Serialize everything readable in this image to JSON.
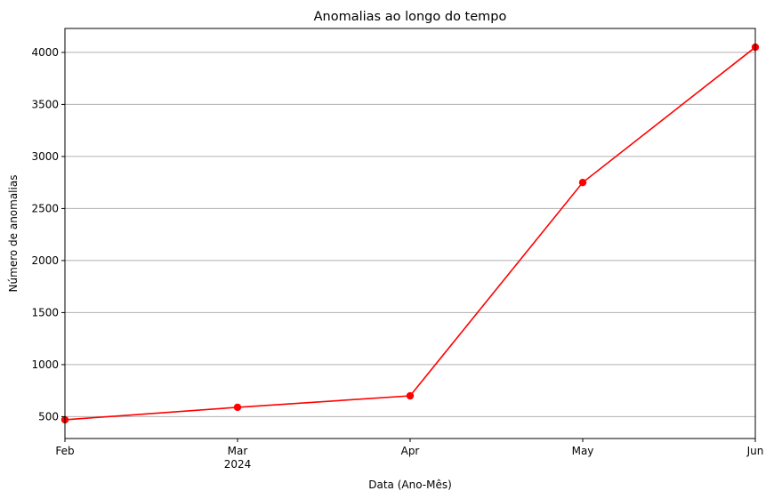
{
  "chart_data": {
    "type": "line",
    "title": "Anomalias ao longo do tempo",
    "xlabel": "Data (Ano-Mês)",
    "ylabel": "Número de anomalias",
    "x_tick_labels": [
      "Feb",
      "Mar",
      "Apr",
      "May",
      "Jun"
    ],
    "x_year_label": "2024",
    "x_year_under": "Mar",
    "y_ticks": [
      500,
      1000,
      1500,
      2000,
      2500,
      3000,
      3500,
      4000
    ],
    "ylim": [
      290,
      4230
    ],
    "grid": "y-only",
    "series": [
      {
        "color": "#ff0000",
        "marker": "circle",
        "points": [
          {
            "x": "2024-02",
            "y": 470
          },
          {
            "x": "2024-03",
            "y": 590
          },
          {
            "x": "2024-04",
            "y": 700
          },
          {
            "x": "2024-05",
            "y": 2750
          },
          {
            "x": "2024-06",
            "y": 4050
          }
        ]
      }
    ]
  },
  "colors": {
    "line": "#ff0000",
    "grid": "#b0b0b0",
    "axis": "#000000"
  }
}
